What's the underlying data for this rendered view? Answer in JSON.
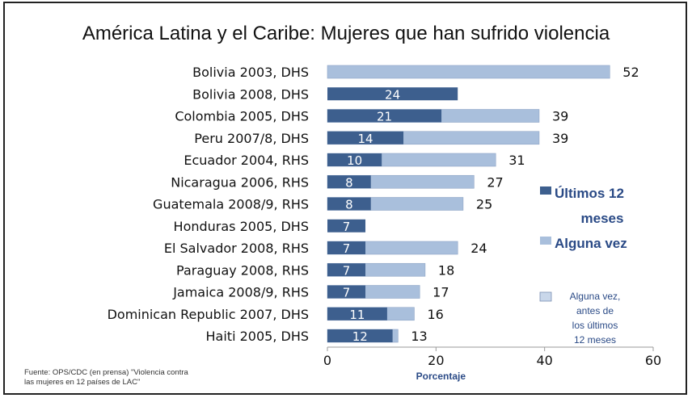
{
  "chart_data": {
    "type": "bar",
    "orientation": "horizontal",
    "stacked": true,
    "title": "América Latina y el Caribe: Mujeres que han sufrido violencia",
    "xlabel": "Porcentaje",
    "ylabel": "",
    "xlim": [
      0,
      60
    ],
    "xticks": [
      "0",
      "20",
      "40",
      "60"
    ],
    "grid": false,
    "legend_position": "right",
    "categories": [
      "Bolivia 2003, DHS",
      "Bolivia 2008, DHS",
      "Colombia 2005, DHS",
      "Peru 2007/8, DHS",
      "Ecuador 2004, RHS",
      "Nicaragua 2006, RHS",
      "Guatemala 2008/9, RHS",
      "Honduras 2005, DHS",
      "El Salvador 2008, RHS",
      "Paraguay 2008, RHS",
      "Jamaica 2008/9, RHS",
      "Dominican Republic 2007, DHS",
      "Haiti 2005, DHS"
    ],
    "series": [
      {
        "name": "Últimos 12 meses",
        "color": "#3d5f8e",
        "values": [
          null,
          24,
          21,
          14,
          10,
          8,
          8,
          7,
          7,
          7,
          7,
          11,
          12
        ]
      },
      {
        "name": "Alguna vez",
        "color": "#a9bfdc",
        "values": [
          52,
          null,
          39,
          39,
          31,
          27,
          25,
          null,
          24,
          18,
          17,
          16,
          13
        ]
      }
    ],
    "legend": [
      {
        "label": "Últimos 12 meses",
        "color": "#3d5f8e"
      },
      {
        "label": "Alguna vez",
        "color": "#a9bfdc"
      },
      {
        "label": "Alguna vez, antes de los últimos 12 meses",
        "color": "#c9d7ea"
      }
    ]
  },
  "legend_text": {
    "l1_line1": "Últimos 12",
    "l1_line2": "meses",
    "l2": "Alguna vez",
    "l3_line1": "Alguna vez,",
    "l3_line2": "antes de",
    "l3_line3": "los últimos",
    "l3_line4": "12 meses"
  },
  "source": {
    "line1": "Fuente: OPS/CDC (en prensa) \"Violencia contra",
    "line2": "las mujeres en 12 países de LAC\""
  }
}
